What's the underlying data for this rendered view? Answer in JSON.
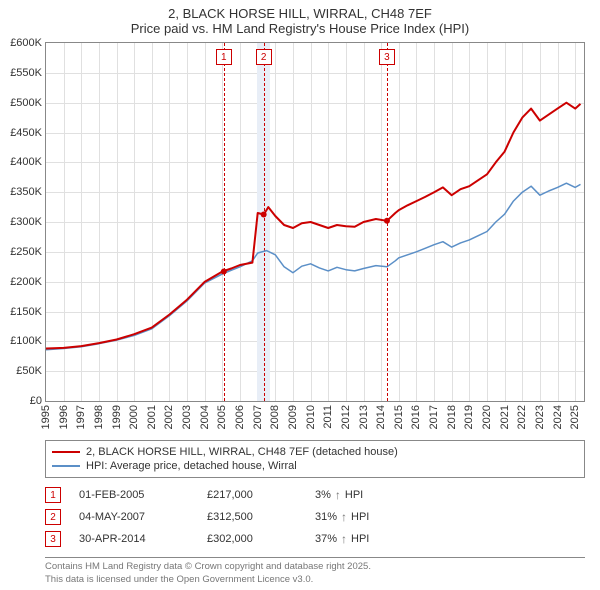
{
  "title": {
    "line1": "2, BLACK HORSE HILL, WIRRAL, CH48 7EF",
    "line2": "Price paid vs. HM Land Registry's House Price Index (HPI)"
  },
  "chart": {
    "type": "line",
    "background_color": "#ffffff",
    "grid_color": "#e0e0e0",
    "axis_color": "#888888",
    "label_fontsize": 11,
    "xlim": [
      1995,
      2025.5
    ],
    "ylim": [
      0,
      600000
    ],
    "ytick_step": 50000,
    "yticks": [
      {
        "v": 0,
        "label": "£0"
      },
      {
        "v": 50000,
        "label": "£50K"
      },
      {
        "v": 100000,
        "label": "£100K"
      },
      {
        "v": 150000,
        "label": "£150K"
      },
      {
        "v": 200000,
        "label": "£200K"
      },
      {
        "v": 250000,
        "label": "£250K"
      },
      {
        "v": 300000,
        "label": "£300K"
      },
      {
        "v": 350000,
        "label": "£350K"
      },
      {
        "v": 400000,
        "label": "£400K"
      },
      {
        "v": 450000,
        "label": "£450K"
      },
      {
        "v": 500000,
        "label": "£500K"
      },
      {
        "v": 550000,
        "label": "£550K"
      },
      {
        "v": 600000,
        "label": "£600K"
      }
    ],
    "xticks": [
      1995,
      1996,
      1997,
      1998,
      1999,
      2000,
      2001,
      2002,
      2003,
      2004,
      2005,
      2006,
      2007,
      2008,
      2009,
      2010,
      2011,
      2012,
      2013,
      2014,
      2015,
      2016,
      2017,
      2018,
      2019,
      2020,
      2021,
      2022,
      2023,
      2024,
      2025
    ],
    "series": [
      {
        "name": "2, BLACK HORSE HILL, WIRRAL, CH48 7EF (detached house)",
        "color": "#cc0000",
        "width": 2,
        "points": [
          [
            1995,
            88000
          ],
          [
            1996,
            89000
          ],
          [
            1997,
            92000
          ],
          [
            1998,
            97000
          ],
          [
            1999,
            103000
          ],
          [
            2000,
            112000
          ],
          [
            2001,
            123000
          ],
          [
            2002,
            145000
          ],
          [
            2003,
            170000
          ],
          [
            2004,
            200000
          ],
          [
            2005,
            217000
          ],
          [
            2005.5,
            222000
          ],
          [
            2006,
            228000
          ],
          [
            2006.7,
            232000
          ],
          [
            2007,
            315000
          ],
          [
            2007.35,
            312500
          ],
          [
            2007.6,
            325000
          ],
          [
            2008,
            310000
          ],
          [
            2008.5,
            295000
          ],
          [
            2009,
            290000
          ],
          [
            2009.5,
            298000
          ],
          [
            2010,
            300000
          ],
          [
            2010.5,
            295000
          ],
          [
            2011,
            290000
          ],
          [
            2011.5,
            295000
          ],
          [
            2012,
            293000
          ],
          [
            2012.5,
            292000
          ],
          [
            2013,
            300000
          ],
          [
            2013.7,
            305000
          ],
          [
            2014.33,
            302000
          ],
          [
            2014.8,
            315000
          ],
          [
            2015,
            320000
          ],
          [
            2015.5,
            328000
          ],
          [
            2016,
            335000
          ],
          [
            2016.5,
            342000
          ],
          [
            2017,
            350000
          ],
          [
            2017.5,
            358000
          ],
          [
            2018,
            345000
          ],
          [
            2018.5,
            355000
          ],
          [
            2019,
            360000
          ],
          [
            2019.5,
            370000
          ],
          [
            2020,
            380000
          ],
          [
            2020.5,
            400000
          ],
          [
            2021,
            418000
          ],
          [
            2021.5,
            450000
          ],
          [
            2022,
            475000
          ],
          [
            2022.5,
            490000
          ],
          [
            2023,
            470000
          ],
          [
            2023.5,
            480000
          ],
          [
            2024,
            490000
          ],
          [
            2024.5,
            500000
          ],
          [
            2025,
            490000
          ],
          [
            2025.3,
            498000
          ]
        ]
      },
      {
        "name": "HPI: Average price, detached house, Wirral",
        "color": "#5b8fc7",
        "width": 1.5,
        "points": [
          [
            1995,
            86000
          ],
          [
            1996,
            88000
          ],
          [
            1997,
            91000
          ],
          [
            1998,
            96000
          ],
          [
            1999,
            102000
          ],
          [
            2000,
            110000
          ],
          [
            2001,
            121000
          ],
          [
            2002,
            143000
          ],
          [
            2003,
            168000
          ],
          [
            2004,
            198000
          ],
          [
            2005,
            213000
          ],
          [
            2005.5,
            219000
          ],
          [
            2006,
            225000
          ],
          [
            2006.7,
            235000
          ],
          [
            2007,
            248000
          ],
          [
            2007.5,
            252000
          ],
          [
            2008,
            245000
          ],
          [
            2008.5,
            225000
          ],
          [
            2009,
            215000
          ],
          [
            2009.5,
            226000
          ],
          [
            2010,
            230000
          ],
          [
            2010.5,
            223000
          ],
          [
            2011,
            218000
          ],
          [
            2011.5,
            224000
          ],
          [
            2012,
            220000
          ],
          [
            2012.5,
            218000
          ],
          [
            2013,
            222000
          ],
          [
            2013.7,
            227000
          ],
          [
            2014.33,
            225000
          ],
          [
            2014.8,
            235000
          ],
          [
            2015,
            240000
          ],
          [
            2015.5,
            245000
          ],
          [
            2016,
            250000
          ],
          [
            2016.5,
            256000
          ],
          [
            2017,
            262000
          ],
          [
            2017.5,
            267000
          ],
          [
            2018,
            258000
          ],
          [
            2018.5,
            265000
          ],
          [
            2019,
            270000
          ],
          [
            2019.5,
            277000
          ],
          [
            2020,
            284000
          ],
          [
            2020.5,
            300000
          ],
          [
            2021,
            313000
          ],
          [
            2021.5,
            335000
          ],
          [
            2022,
            350000
          ],
          [
            2022.5,
            360000
          ],
          [
            2023,
            345000
          ],
          [
            2023.5,
            352000
          ],
          [
            2024,
            358000
          ],
          [
            2024.5,
            365000
          ],
          [
            2025,
            358000
          ],
          [
            2025.3,
            363000
          ]
        ]
      }
    ],
    "markers": [
      {
        "n": "1",
        "x": 2005.08,
        "highlight": false
      },
      {
        "n": "2",
        "x": 2007.34,
        "highlight": true,
        "band_color": "#e8eef7"
      },
      {
        "n": "3",
        "x": 2014.33,
        "highlight": false
      }
    ],
    "sale_point_color": "#cc0000",
    "sale_point_radius": 3
  },
  "legend": {
    "items": [
      {
        "label": "2, BLACK HORSE HILL, WIRRAL, CH48 7EF (detached house)",
        "color": "#cc0000"
      },
      {
        "label": "HPI: Average price, detached house, Wirral",
        "color": "#5b8fc7"
      }
    ]
  },
  "sales": [
    {
      "n": "1",
      "date": "01-FEB-2005",
      "price": "£217,000",
      "delta": "3%",
      "delta_suffix": "HPI"
    },
    {
      "n": "2",
      "date": "04-MAY-2007",
      "price": "£312,500",
      "delta": "31%",
      "delta_suffix": "HPI"
    },
    {
      "n": "3",
      "date": "30-APR-2014",
      "price": "£302,000",
      "delta": "37%",
      "delta_suffix": "HPI"
    }
  ],
  "footer": {
    "line1": "Contains HM Land Registry data © Crown copyright and database right 2025.",
    "line2": "This data is licensed under the Open Government Licence v3.0."
  }
}
